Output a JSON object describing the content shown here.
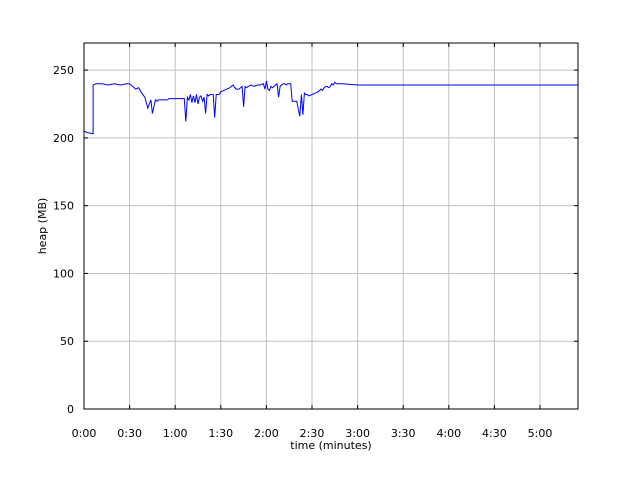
{
  "chart_data": {
    "type": "line",
    "title": "",
    "xlabel": "time (minutes)",
    "ylabel": "heap (MB)",
    "x_unit": "seconds",
    "xlim": [
      0,
      325
    ],
    "ylim": [
      0,
      270
    ],
    "x_ticks": [
      {
        "value": 0,
        "label": "0:00"
      },
      {
        "value": 30,
        "label": "0:30"
      },
      {
        "value": 60,
        "label": "1:00"
      },
      {
        "value": 90,
        "label": "1:30"
      },
      {
        "value": 120,
        "label": "2:00"
      },
      {
        "value": 150,
        "label": "2:30"
      },
      {
        "value": 180,
        "label": "3:00"
      },
      {
        "value": 210,
        "label": "3:30"
      },
      {
        "value": 240,
        "label": "4:00"
      },
      {
        "value": 270,
        "label": "4:30"
      },
      {
        "value": 300,
        "label": "5:00"
      }
    ],
    "y_ticks": [
      {
        "value": 0,
        "label": "0"
      },
      {
        "value": 50,
        "label": "50"
      },
      {
        "value": 100,
        "label": "100"
      },
      {
        "value": 150,
        "label": "150"
      },
      {
        "value": 200,
        "label": "200"
      },
      {
        "value": 250,
        "label": "250"
      }
    ],
    "grid": true,
    "line_color": "#0000ff",
    "series": [
      {
        "x": [
          0,
          2,
          6,
          6,
          8,
          12,
          16,
          20,
          24,
          28,
          30,
          34,
          36,
          38,
          40,
          42,
          44,
          45,
          46,
          47,
          48,
          49,
          50,
          51,
          52,
          53,
          54,
          55,
          56,
          58,
          60,
          62,
          64,
          66,
          67,
          68,
          69,
          70,
          71,
          72,
          73,
          74,
          75,
          76,
          77,
          78,
          79,
          80,
          81,
          82,
          83,
          84,
          85,
          86,
          87,
          88,
          89,
          90,
          92,
          94,
          96,
          98,
          100,
          102,
          104,
          105,
          106,
          107,
          108,
          110,
          112,
          114,
          116,
          118,
          119,
          120,
          121,
          122,
          123,
          124,
          125,
          126,
          127,
          128,
          129,
          130,
          131,
          132,
          133,
          134,
          135,
          136,
          137,
          138,
          139,
          140,
          141,
          142,
          143,
          144,
          145,
          146,
          147,
          148,
          150,
          152,
          154,
          156,
          157,
          158,
          159,
          160,
          161,
          162,
          163,
          164,
          165,
          166,
          170,
          180,
          200,
          250,
          300,
          325
        ],
        "y": [
          205,
          204,
          203,
          239,
          240,
          240,
          239,
          240,
          239,
          240,
          240,
          236,
          237,
          233,
          230,
          222,
          228,
          218,
          223,
          228,
          227,
          228,
          228,
          228,
          228,
          228,
          228,
          228,
          229,
          229,
          229,
          229,
          229,
          229,
          212,
          230,
          228,
          232,
          226,
          231,
          226,
          232,
          225,
          230,
          231,
          227,
          230,
          218,
          232,
          231,
          232,
          232,
          232,
          215,
          232,
          232,
          232,
          234,
          235,
          236,
          237,
          239,
          236,
          236,
          238,
          223,
          238,
          237,
          238,
          239,
          238,
          239,
          239,
          240,
          236,
          242,
          236,
          235,
          238,
          237,
          238,
          239,
          240,
          230,
          238,
          239,
          240,
          240,
          239,
          240,
          240,
          240,
          227,
          227,
          227,
          227,
          221,
          216,
          232,
          217,
          233,
          232,
          232,
          231,
          232,
          233,
          234,
          236,
          235,
          237,
          238,
          238,
          237,
          238,
          240,
          239,
          241,
          240,
          240,
          239,
          239,
          239,
          239,
          239
        ]
      }
    ]
  }
}
